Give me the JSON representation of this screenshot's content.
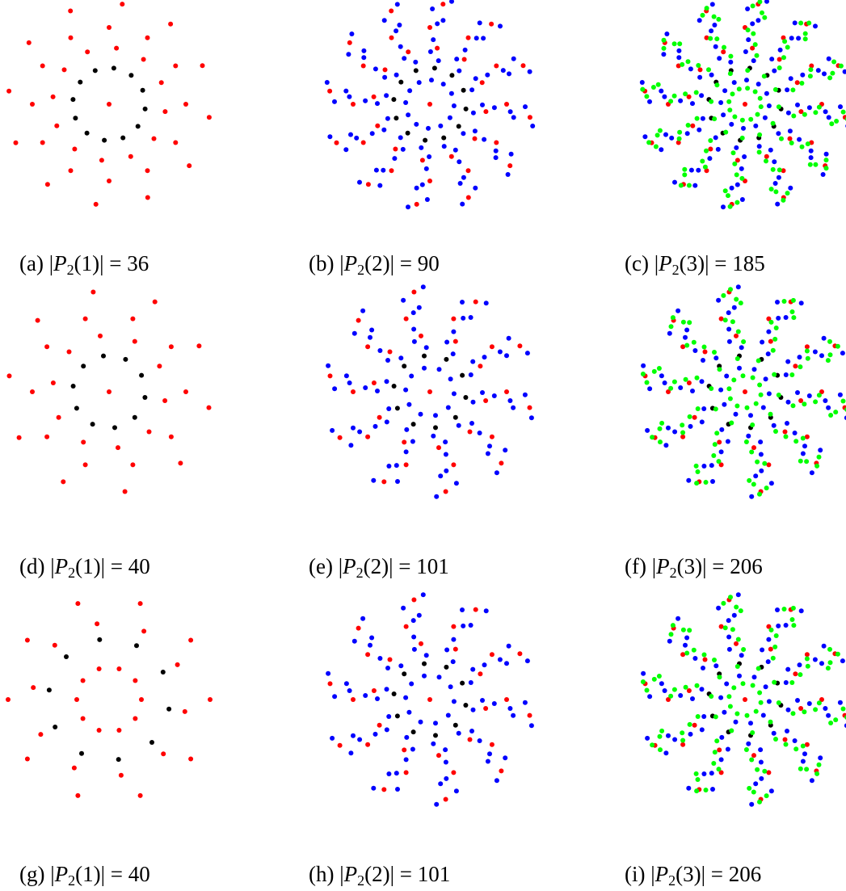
{
  "figure": {
    "colors": {
      "level0": "#000000",
      "level1": "#ff0000",
      "level2": "#0000ff",
      "level3": "#00ff00"
    },
    "panels": [
      {
        "id": "a",
        "label": "(a)",
        "var": "P",
        "sub": "2",
        "arg": "(1)",
        "value": "36",
        "symmetry": 12,
        "levels": 1
      },
      {
        "id": "b",
        "label": "(b)",
        "var": "P",
        "sub": "2",
        "arg": "(2)",
        "value": "90",
        "symmetry": 12,
        "levels": 2
      },
      {
        "id": "c",
        "label": "(c)",
        "var": "P",
        "sub": "2",
        "arg": "(3)",
        "value": "185",
        "symmetry": 12,
        "levels": 3
      },
      {
        "id": "d",
        "label": "(d)",
        "var": "P",
        "sub": "2",
        "arg": "(1)",
        "value": "40",
        "symmetry": 10,
        "levels": 1
      },
      {
        "id": "e",
        "label": "(e)",
        "var": "P",
        "sub": "2",
        "arg": "(2)",
        "value": "101",
        "symmetry": 10,
        "levels": 2
      },
      {
        "id": "f",
        "label": "(f)",
        "var": "P",
        "sub": "2",
        "arg": "(3)",
        "value": "206",
        "symmetry": 10,
        "levels": 3
      },
      {
        "id": "g",
        "label": "(g)",
        "var": "P",
        "sub": "2",
        "arg": "(1)",
        "value": "40",
        "symmetry": 10,
        "levels": 1
      },
      {
        "id": "h",
        "label": "(h)",
        "var": "P",
        "sub": "2",
        "arg": "(2)",
        "value": "101",
        "symmetry": 10,
        "levels": 2
      },
      {
        "id": "i",
        "label": "(i)",
        "var": "P",
        "sub": "2",
        "arg": "(3)",
        "value": "206",
        "symmetry": 10,
        "levels": 3
      }
    ]
  }
}
